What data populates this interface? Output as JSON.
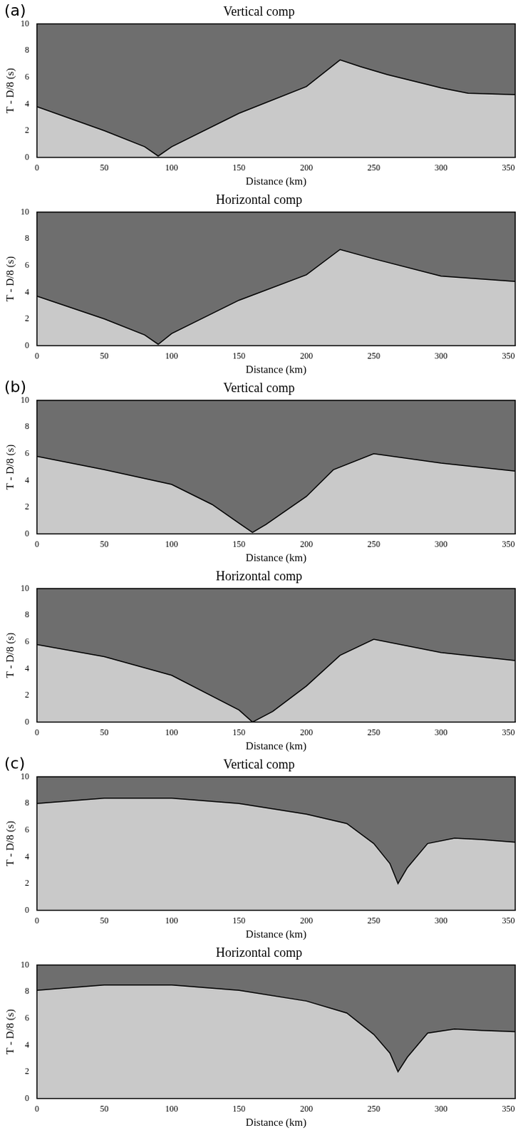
{
  "chart_data": [
    {
      "type": "line",
      "panel_label": "(a)",
      "title": "Vertical comp",
      "x_label": "Distance (km)",
      "y_label": "T - D/8 (s)",
      "x": [
        0,
        50,
        80,
        90,
        100,
        150,
        200,
        225,
        240,
        260,
        300,
        320,
        355
      ],
      "values": [
        3.8,
        2.0,
        0.8,
        0.1,
        0.8,
        3.3,
        5.3,
        7.3,
        6.8,
        6.2,
        5.2,
        4.8,
        4.7
      ],
      "color": "#000000",
      "grid": false,
      "xlim": [
        0,
        355
      ],
      "xticks": [
        0,
        50,
        100,
        150,
        200,
        250,
        300,
        350
      ],
      "ylim": [
        0,
        10
      ],
      "yticks": [
        0,
        2,
        4,
        6,
        8,
        10
      ]
    },
    {
      "type": "line",
      "title": "Horizontal comp",
      "x_label": "Distance (km)",
      "y_label": "T - D/8 (s)",
      "x": [
        0,
        50,
        80,
        90,
        100,
        150,
        200,
        225,
        250,
        300,
        355
      ],
      "values": [
        3.7,
        2.0,
        0.8,
        0.1,
        0.9,
        3.4,
        5.3,
        7.2,
        6.5,
        5.2,
        4.8
      ],
      "color": "#000000",
      "grid": false,
      "xlim": [
        0,
        355
      ],
      "xticks": [
        0,
        50,
        100,
        150,
        200,
        250,
        300,
        350
      ],
      "ylim": [
        0,
        10
      ],
      "yticks": [
        0,
        2,
        4,
        6,
        8,
        10
      ]
    },
    {
      "type": "line",
      "panel_label": "(b)",
      "title": "Vertical comp",
      "x_label": "Distance (km)",
      "y_label": "T - D/8 (s)",
      "x": [
        0,
        50,
        100,
        130,
        150,
        160,
        170,
        200,
        220,
        250,
        300,
        355
      ],
      "values": [
        5.8,
        4.8,
        3.7,
        2.2,
        0.8,
        0.1,
        0.7,
        2.8,
        4.8,
        6.0,
        5.3,
        4.7
      ],
      "color": "#000000",
      "grid": false,
      "xlim": [
        0,
        355
      ],
      "xticks": [
        0,
        50,
        100,
        150,
        200,
        250,
        300,
        350
      ],
      "ylim": [
        0,
        10
      ],
      "yticks": [
        0,
        2,
        4,
        6,
        8,
        10
      ]
    },
    {
      "type": "line",
      "title": "Horizontal comp",
      "x_label": "Distance (km)",
      "y_label": "T - D/8 (s)",
      "x": [
        0,
        50,
        100,
        150,
        160,
        175,
        200,
        225,
        250,
        300,
        355
      ],
      "values": [
        5.8,
        4.9,
        3.5,
        0.9,
        0.0,
        0.8,
        2.7,
        5.0,
        6.2,
        5.2,
        4.6
      ],
      "color": "#000000",
      "grid": false,
      "xlim": [
        0,
        355
      ],
      "xticks": [
        0,
        50,
        100,
        150,
        200,
        250,
        300,
        350
      ],
      "ylim": [
        0,
        10
      ],
      "yticks": [
        0,
        2,
        4,
        6,
        8,
        10
      ]
    },
    {
      "type": "line",
      "panel_label": "(c)",
      "title": "Vertical comp",
      "x_label": "Distance (km)",
      "y_label": "T - D/8 (s)",
      "x": [
        0,
        50,
        100,
        150,
        200,
        230,
        250,
        262,
        268,
        275,
        290,
        310,
        330,
        355
      ],
      "values": [
        8.0,
        8.4,
        8.4,
        8.0,
        7.2,
        6.5,
        5.0,
        3.5,
        2.0,
        3.2,
        5.0,
        5.4,
        5.3,
        5.1
      ],
      "color": "#000000",
      "grid": false,
      "xlim": [
        0,
        355
      ],
      "xticks": [
        0,
        50,
        100,
        150,
        200,
        250,
        300,
        350
      ],
      "ylim": [
        0,
        10
      ],
      "yticks": [
        0,
        2,
        4,
        6,
        8,
        10
      ]
    },
    {
      "type": "line",
      "title": "Horizontal comp",
      "x_label": "Distance (km)",
      "y_label": "T - D/8 (s)",
      "x": [
        0,
        50,
        100,
        150,
        200,
        230,
        250,
        262,
        268,
        275,
        290,
        310,
        330,
        355
      ],
      "values": [
        8.1,
        8.5,
        8.5,
        8.1,
        7.3,
        6.4,
        4.8,
        3.4,
        2.0,
        3.1,
        4.9,
        5.2,
        5.1,
        5.0
      ],
      "color": "#000000",
      "grid": false,
      "xlim": [
        0,
        355
      ],
      "xticks": [
        0,
        50,
        100,
        150,
        200,
        250,
        300,
        350
      ],
      "ylim": [
        0,
        10
      ],
      "yticks": [
        0,
        2,
        4,
        6,
        8,
        10
      ]
    }
  ]
}
